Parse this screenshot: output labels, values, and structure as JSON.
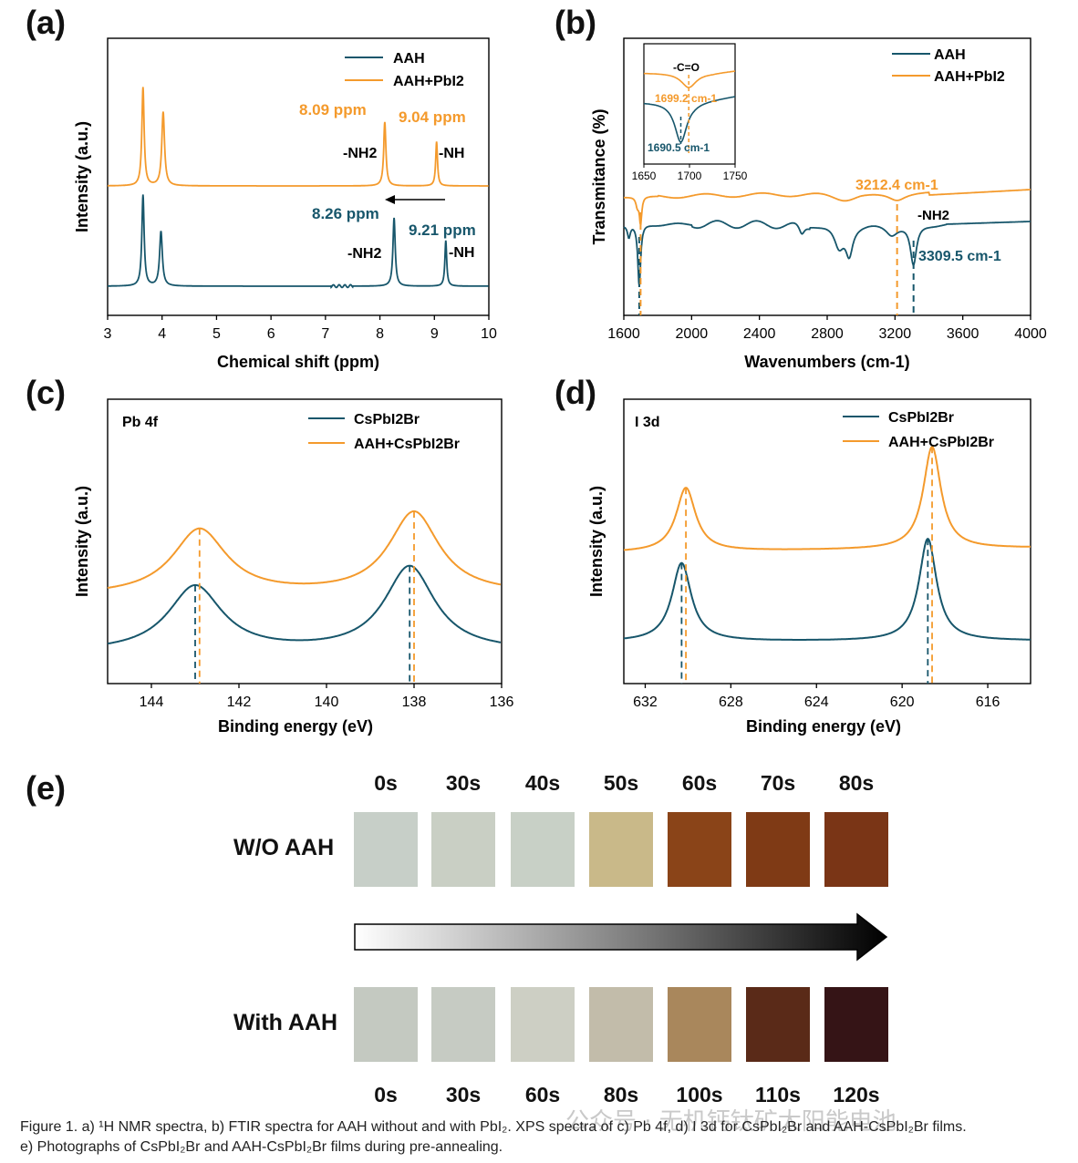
{
  "colors": {
    "aah": "#17566b",
    "orange": "#f49a2c",
    "axis": "#000000"
  },
  "panels": {
    "a": {
      "label": "(a)"
    },
    "b": {
      "label": "(b)"
    },
    "c": {
      "label": "(c)"
    },
    "d": {
      "label": "(d)"
    },
    "e": {
      "label": "(e)"
    }
  },
  "chart_data": [
    {
      "id": "a",
      "type": "line",
      "xlabel": "Chemical shift (ppm)",
      "ylabel": "Intensity (a.u.)",
      "xlim": [
        3,
        10
      ],
      "xticks": [
        "3",
        "4",
        "5",
        "6",
        "7",
        "8",
        "9",
        "10"
      ],
      "legend": [
        "AAH",
        "AAH+PbI2"
      ],
      "series": [
        {
          "name": "AAH",
          "color": "#17566b",
          "baseline": 0.0,
          "peaks": [
            {
              "x": 3.65,
              "h": 1.0,
              "w": 0.025
            },
            {
              "x": 3.98,
              "h": 0.6,
              "w": 0.03
            },
            {
              "x": 8.26,
              "h": 0.75,
              "w": 0.025
            },
            {
              "x": 9.21,
              "h": 0.5,
              "w": 0.02
            }
          ]
        },
        {
          "name": "AAH+PbI2",
          "color": "#f49a2c",
          "baseline": 1.07,
          "peaks": [
            {
              "x": 3.65,
              "h": 1.0,
              "w": 0.025
            },
            {
              "x": 4.02,
              "h": 0.75,
              "w": 0.03
            },
            {
              "x": 8.09,
              "h": 0.65,
              "w": 0.025
            },
            {
              "x": 9.04,
              "h": 0.45,
              "w": 0.02
            }
          ]
        }
      ],
      "annotations": [
        {
          "text": "8.09 ppm",
          "color": "orange"
        },
        {
          "text": "9.04 ppm",
          "color": "orange"
        },
        {
          "text": "8.26 ppm",
          "color": "aah"
        },
        {
          "text": "9.21 ppm",
          "color": "aah"
        },
        {
          "text": "-NH2"
        },
        {
          "text": "-NH"
        }
      ]
    },
    {
      "id": "b",
      "type": "line",
      "xlabel": "Wavenumbers (cm-1)",
      "ylabel": "Transmitance (%)",
      "xlim": [
        1600,
        4000
      ],
      "xticks": [
        "1600",
        "2000",
        "2400",
        "2800",
        "3200",
        "3600",
        "4000"
      ],
      "legend": [
        "AAH",
        "AAH+PbI2"
      ],
      "annotations": [
        {
          "text": "3212.4 cm-1",
          "color": "orange",
          "x": 3212.4
        },
        {
          "text": "3309.5 cm-1",
          "color": "aah",
          "x": 3309.5
        },
        {
          "text": "-NH2"
        }
      ],
      "inset": {
        "xlim": [
          1650,
          1750
        ],
        "xticks": [
          "1650",
          "1700",
          "1750"
        ],
        "annotations": [
          {
            "text": "-C=O"
          },
          {
            "text": "1699.2 cm-1",
            "color": "orange",
            "x": 1699.2
          },
          {
            "text": "1690.5 cm-1",
            "color": "aah",
            "x": 1690.5
          }
        ]
      }
    },
    {
      "id": "c",
      "type": "line",
      "title": "Pb 4f",
      "xlabel": "Binding energy (eV)",
      "ylabel": "Intensity (a.u.)",
      "xlim": [
        145,
        136
      ],
      "xticks": [
        "144",
        "142",
        "140",
        "138",
        "136"
      ],
      "legend": [
        "CsPbI2Br",
        "AAH+CsPbI2Br"
      ],
      "series": [
        {
          "name": "CsPbI2Br",
          "color": "#17566b",
          "peaks": [
            143.0,
            138.1
          ]
        },
        {
          "name": "AAH+CsPbI2Br",
          "color": "#f49a2c",
          "peaks": [
            142.9,
            138.0
          ]
        }
      ]
    },
    {
      "id": "d",
      "type": "line",
      "title": "I 3d",
      "xlabel": "Binding energy (eV)",
      "ylabel": "Intensity (a.u.)",
      "xlim": [
        633,
        614
      ],
      "xticks": [
        "632",
        "628",
        "624",
        "620",
        "616"
      ],
      "legend": [
        "CsPbI2Br",
        "AAH+CsPbI2Br"
      ],
      "series": [
        {
          "name": "CsPbI2Br",
          "color": "#17566b",
          "peaks": [
            630.3,
            618.8
          ]
        },
        {
          "name": "AAH+CsPbI2Br",
          "color": "#f49a2c",
          "peaks": [
            630.1,
            618.6
          ]
        }
      ]
    }
  ],
  "photos": {
    "top_times": [
      "0s",
      "30s",
      "40s",
      "50s",
      "60s",
      "70s",
      "80s"
    ],
    "bottom_times": [
      "0s",
      "30s",
      "60s",
      "80s",
      "100s",
      "110s",
      "120s"
    ],
    "row1_label": "W/O AAH",
    "row2_label": "With AAH",
    "row1_colors": [
      "#c7cfc8",
      "#c9cfc4",
      "#c8d0c6",
      "#c9b989",
      "#8a4418",
      "#7f3a15",
      "#7a3516"
    ],
    "row2_colors": [
      "#c4c9c1",
      "#c6cbc3",
      "#cdcfc4",
      "#c2bcaa",
      "#a9875c",
      "#5a2a18",
      "#351416"
    ]
  },
  "caption": {
    "line1": "Figure 1.  a) ¹H NMR spectra, b) FTIR spectra for AAH without and with PbI₂. XPS spectra of c) Pb 4f, d) I 3d for CsPbI₂Br and AAH-CsPbI₂Br films.",
    "line2": "e) Photographs of CsPbI₂Br and AAH-CsPbI₂Br films during pre-annealing."
  },
  "watermark": "公众号 · 无机钙钛矿太阳能电池"
}
